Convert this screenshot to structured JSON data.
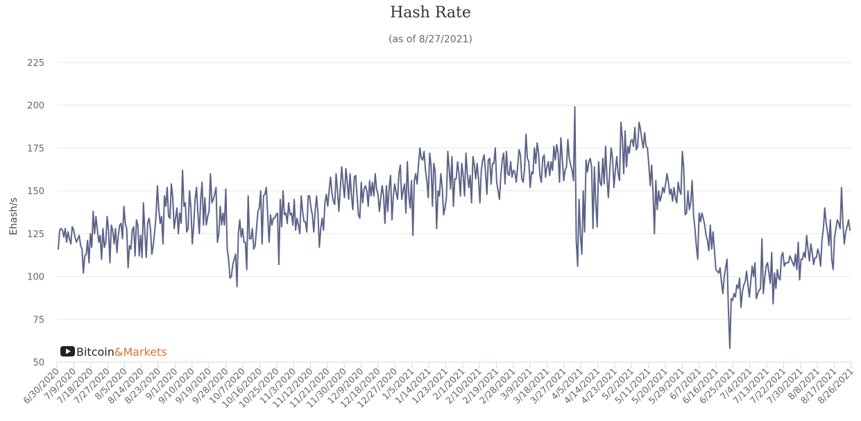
{
  "chart_data": {
    "type": "line",
    "title": "Hash Rate",
    "subtitle": "(as of 8/27/2021)",
    "xlabel": "",
    "ylabel": "Ehash/s",
    "ylim": [
      50,
      225
    ],
    "yticks": [
      50,
      75,
      100,
      125,
      150,
      175,
      200,
      225
    ],
    "grid": true,
    "legend": "none",
    "x_tick_labels": [
      "6/30/2020",
      "7/9/2020",
      "7/18/2020",
      "7/27/2020",
      "8/5/2020",
      "8/14/2020",
      "8/23/2020",
      "9/1/2020",
      "9/10/2020",
      "9/19/2020",
      "9/28/2020",
      "10/7/2020",
      "10/16/2020",
      "10/25/2020",
      "11/3/2020",
      "11/12/2020",
      "11/21/2020",
      "11/30/2020",
      "12/9/2020",
      "12/18/2020",
      "12/27/2020",
      "1/5/2021",
      "1/14/2021",
      "1/23/2021",
      "2/1/2021",
      "2/10/2021",
      "2/19/2021",
      "2/28/2021",
      "3/9/2021",
      "3/18/2021",
      "3/27/2021",
      "4/5/2021",
      "4/14/2021",
      "4/23/2021",
      "5/2/2021",
      "5/11/2021",
      "5/20/2021",
      "5/29/2021",
      "6/7/2021",
      "6/16/2021",
      "6/25/2021",
      "7/4/2021",
      "7/13/2021",
      "7/22/2021",
      "7/30/2021",
      "8/8/2021",
      "8/17/2021",
      "8/26/2021"
    ],
    "series": [
      {
        "color": "#5c6288",
        "x_start": "6/30/2020",
        "x_end": "8/27/2021",
        "values": [
          116,
          127,
          128,
          127,
          123,
          128,
          120,
          126,
          122,
          119,
          129,
          127,
          123,
          120,
          122,
          124,
          118,
          116,
          102,
          112,
          113,
          121,
          108,
          125,
          117,
          138,
          125,
          135,
          127,
          120,
          124,
          110,
          128,
          117,
          120,
          135,
          127,
          108,
          130,
          127,
          119,
          128,
          114,
          124,
          130,
          131,
          122,
          141,
          131,
          128,
          105,
          118,
          116,
          127,
          129,
          112,
          133,
          130,
          112,
          124,
          111,
          143,
          126,
          111,
          131,
          134,
          128,
          113,
          118,
          126,
          135,
          153,
          139,
          131,
          135,
          119,
          147,
          141,
          152,
          135,
          134,
          154,
          146,
          128,
          134,
          140,
          125,
          137,
          131,
          162,
          141,
          143,
          126,
          128,
          150,
          140,
          119,
          130,
          145,
          152,
          137,
          125,
          145,
          155,
          130,
          146,
          130,
          135,
          138,
          160,
          143,
          145,
          148,
          152,
          120,
          125,
          141,
          130,
          137,
          130,
          151,
          116,
          110,
          99,
          100,
          107,
          110,
          113,
          94,
          125,
          133,
          123,
          128,
          120,
          120,
          104,
          147,
          122,
          122,
          128,
          116,
          118,
          128,
          138,
          140,
          150,
          119,
          147,
          148,
          152,
          136,
          120,
          136,
          130,
          134,
          134,
          136,
          137,
          107,
          145,
          129,
          150,
          136,
          137,
          131,
          143,
          136,
          137,
          130,
          145,
          127,
          134,
          130,
          125,
          147,
          138,
          132,
          132,
          126,
          147,
          147,
          140,
          136,
          126,
          138,
          147,
          137,
          117,
          128,
          134,
          127,
          143,
          148,
          141,
          150,
          158,
          149,
          144,
          142,
          160,
          150,
          138,
          151,
          164,
          154,
          146,
          163,
          155,
          145,
          160,
          147,
          139,
          158,
          159,
          147,
          136,
          134,
          155,
          143,
          151,
          153,
          150,
          141,
          156,
          147,
          155,
          147,
          160,
          151,
          148,
          138,
          146,
          153,
          147,
          131,
          153,
          138,
          152,
          159,
          133,
          147,
          154,
          149,
          145,
          160,
          165,
          145,
          150,
          154,
          137,
          167,
          148,
          140,
          156,
          124,
          156,
          160,
          154,
          165,
          175,
          169,
          168,
          173,
          162,
          156,
          146,
          172,
          165,
          141,
          166,
          161,
          128,
          150,
          147,
          160,
          152,
          136,
          140,
          146,
          173,
          163,
          151,
          170,
          141,
          157,
          157,
          167,
          160,
          147,
          166,
          159,
          147,
          172,
          160,
          152,
          159,
          143,
          170,
          165,
          157,
          166,
          157,
          143,
          162,
          168,
          171,
          161,
          148,
          168,
          169,
          154,
          166,
          166,
          175,
          155,
          150,
          145,
          159,
          168,
          172,
          154,
          173,
          160,
          159,
          167,
          158,
          162,
          161,
          155,
          164,
          174,
          171,
          157,
          155,
          163,
          183,
          169,
          167,
          152,
          161,
          160,
          175,
          166,
          178,
          172,
          159,
          155,
          169,
          171,
          158,
          164,
          167,
          159,
          167,
          162,
          176,
          168,
          177,
          172,
          155,
          181,
          169,
          156,
          162,
          164,
          180,
          169,
          165,
          162,
          156,
          199,
          121,
          106,
          145,
          124,
          113,
          150,
          126,
          168,
          161,
          167,
          169,
          164,
          128,
          164,
          143,
          129,
          167,
          155,
          153,
          169,
          154,
          176,
          158,
          146,
          162,
          175,
          169,
          152,
          162,
          170,
          160,
          156,
          190,
          181,
          160,
          185,
          164,
          176,
          172,
          179,
          180,
          176,
          187,
          174,
          176,
          190,
          186,
          180,
          175,
          184,
          176,
          175,
          165,
          153,
          165,
          149,
          125,
          156,
          139,
          150,
          144,
          147,
          152,
          149,
          154,
          160,
          155,
          148,
          151,
          144,
          152,
          146,
          143,
          155,
          150,
          148,
          173,
          163,
          136,
          137,
          150,
          139,
          143,
          156,
          136,
          128,
          118,
          110,
          137,
          132,
          137,
          134,
          130,
          124,
          121,
          115,
          130,
          116,
          126,
          115,
          104,
          103,
          102,
          105,
          97,
          90,
          100,
          105,
          110,
          80,
          58,
          87,
          86,
          90,
          88,
          95,
          93,
          99,
          82,
          91,
          95,
          97,
          103,
          95,
          88,
          97,
          106,
          100,
          108,
          87,
          90,
          92,
          93,
          122,
          90,
          99,
          106,
          108,
          102,
          96,
          114,
          84,
          102,
          93,
          104,
          99,
          98,
          112,
          114,
          106,
          108,
          108,
          108,
          112,
          110,
          108,
          106,
          113,
          104,
          120,
          98,
          110,
          110,
          114,
          111,
          124,
          116,
          109,
          119,
          114,
          107,
          111,
          111,
          116,
          113,
          106,
          121,
          128,
          140,
          131,
          126,
          118,
          133,
          110,
          104,
          123,
          128,
          133,
          131,
          128,
          152,
          131,
          119,
          126,
          129,
          133,
          127
        ]
      }
    ]
  },
  "watermark": {
    "brand_part1": "Bitcoin",
    "brand_part2": "&Markets",
    "icon": "play-icon",
    "color_dark": "#222222",
    "color_accent": "#e0702a"
  }
}
